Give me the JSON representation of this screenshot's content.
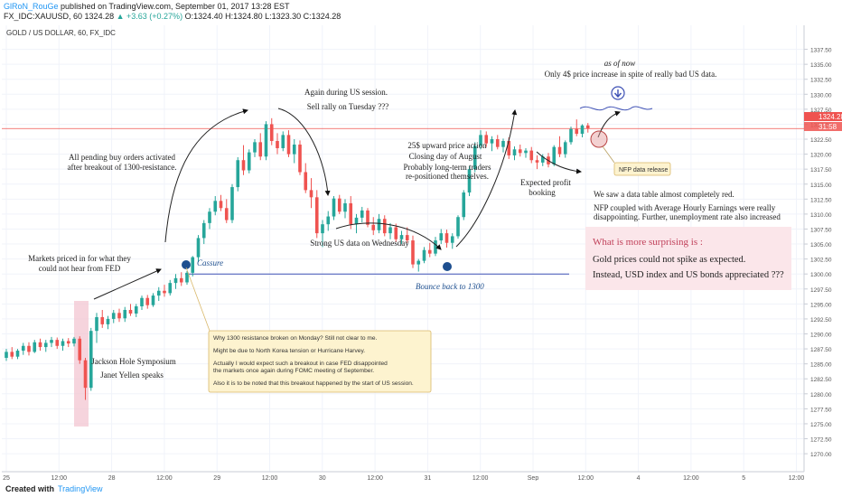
{
  "header": {
    "author": "GlRoN_RouGe",
    "published": "published on TradingView.com, September 01, 2017 13:28 EST",
    "symbol_line": "FX_IDC:XAUUSD, 60",
    "last": "1324.28",
    "change": "▲ +3.63 (+0.27%)",
    "ohlc": "O:1324.40 H:1324.80 L:1323.30 C:1324.28"
  },
  "footer": {
    "created_with": "Created with",
    "brand": "TradingView"
  },
  "colors": {
    "up": "#26a69a",
    "down": "#ef5350",
    "price_tag": "#ef5350",
    "support": "#3f51b5",
    "grid": "#f0f3fa"
  },
  "chart_data": {
    "type": "candlestick",
    "title": "GOLD / US DOLLAR, 60, FX_IDC",
    "ylim": [
      1267,
      1340
    ],
    "y_ticks": [
      "1337.50",
      "1335.00",
      "1332.50",
      "1330.00",
      "1327.50",
      "1325.00",
      "1322.50",
      "1320.00",
      "1317.50",
      "1315.00",
      "1312.50",
      "1310.00",
      "1307.50",
      "1305.00",
      "1302.50",
      "1300.00",
      "1297.50",
      "1295.00",
      "1292.50",
      "1290.00",
      "1287.50",
      "1285.00",
      "1282.50",
      "1280.00",
      "1277.50",
      "1275.00",
      "1272.50",
      "1270.00"
    ],
    "x_ticks": [
      "25",
      "12:00",
      "28",
      "12:00",
      "29",
      "12:00",
      "30",
      "12:00",
      "31",
      "12:00",
      "Sep",
      "12:00",
      "4",
      "12:00",
      "5",
      "12:00"
    ],
    "last_price": "1324.28",
    "countdown": "31:58",
    "support_level": 1300,
    "candles": [
      [
        1286,
        1287.5,
        1285.5,
        1287
      ],
      [
        1287,
        1287.8,
        1285.8,
        1286.2
      ],
      [
        1286.2,
        1287.5,
        1285.8,
        1287.2
      ],
      [
        1287.2,
        1288.5,
        1286.5,
        1288
      ],
      [
        1288,
        1288.6,
        1286.4,
        1287
      ],
      [
        1287,
        1289,
        1286.8,
        1288.6
      ],
      [
        1288.6,
        1289.2,
        1287.2,
        1287.8
      ],
      [
        1287.8,
        1289,
        1287,
        1288.5
      ],
      [
        1288.5,
        1289.5,
        1287.8,
        1289
      ],
      [
        1289,
        1289.4,
        1287.5,
        1288
      ],
      [
        1288,
        1289.2,
        1287.2,
        1288.8
      ],
      [
        1288.8,
        1289.3,
        1287.8,
        1288.4
      ],
      [
        1288.4,
        1289.5,
        1287.9,
        1289.2
      ],
      [
        1289.2,
        1289.6,
        1285,
        1285.6
      ],
      [
        1285.6,
        1286,
        1279,
        1281
      ],
      [
        1281,
        1291,
        1280.5,
        1290.5
      ],
      [
        1290.5,
        1293.5,
        1288.5,
        1292.8
      ],
      [
        1292.8,
        1294,
        1291,
        1291.6
      ],
      [
        1291.6,
        1293,
        1290.8,
        1292.5
      ],
      [
        1292.5,
        1294,
        1291.8,
        1293.5
      ],
      [
        1293.5,
        1294.2,
        1292,
        1292.6
      ],
      [
        1292.6,
        1294.5,
        1292,
        1294
      ],
      [
        1294,
        1295,
        1293,
        1293.4
      ],
      [
        1293.4,
        1295,
        1292.8,
        1294.6
      ],
      [
        1294.6,
        1296.4,
        1294,
        1296
      ],
      [
        1296,
        1296.5,
        1294.2,
        1294.8
      ],
      [
        1294.8,
        1296.8,
        1294.5,
        1296.4
      ],
      [
        1296.4,
        1297.8,
        1295.5,
        1297.2
      ],
      [
        1297.2,
        1298.2,
        1296.2,
        1296.8
      ],
      [
        1296.8,
        1299,
        1296.4,
        1298.5
      ],
      [
        1298.5,
        1300,
        1297.5,
        1299.3
      ],
      [
        1299.3,
        1300.3,
        1298,
        1298.6
      ],
      [
        1298.6,
        1300.5,
        1298.2,
        1300.2
      ],
      [
        1300.2,
        1303,
        1299.6,
        1302.8
      ],
      [
        1302.8,
        1306.5,
        1302,
        1306
      ],
      [
        1306,
        1309,
        1305,
        1308.5
      ],
      [
        1308.5,
        1311,
        1307.5,
        1310.4
      ],
      [
        1310.4,
        1313,
        1309.8,
        1312.2
      ],
      [
        1312.2,
        1313.2,
        1310.5,
        1311
      ],
      [
        1311,
        1312.5,
        1308.5,
        1309
      ],
      [
        1309,
        1315,
        1308.5,
        1314.5
      ],
      [
        1314.5,
        1319.5,
        1313.8,
        1319
      ],
      [
        1319,
        1321.5,
        1316.5,
        1317.3
      ],
      [
        1317.3,
        1320.8,
        1316.8,
        1320.3
      ],
      [
        1320.3,
        1322.5,
        1319.5,
        1322
      ],
      [
        1322,
        1323.5,
        1319,
        1319.6
      ],
      [
        1319.6,
        1325.5,
        1319,
        1325
      ],
      [
        1325,
        1326,
        1321.5,
        1322.2
      ],
      [
        1322.2,
        1323.5,
        1320,
        1321
      ],
      [
        1321,
        1323.8,
        1320.5,
        1323.2
      ],
      [
        1323.2,
        1324,
        1319.5,
        1320
      ],
      [
        1320,
        1322.5,
        1318.5,
        1321.6
      ],
      [
        1321.6,
        1322.3,
        1316.5,
        1317
      ],
      [
        1317,
        1318.5,
        1313.5,
        1314
      ],
      [
        1314,
        1316,
        1311,
        1312.8
      ],
      [
        1312.8,
        1314,
        1306,
        1306.8
      ],
      [
        1306.8,
        1309,
        1304.5,
        1308.3
      ],
      [
        1308.3,
        1310.5,
        1307.2,
        1309.6
      ],
      [
        1309.6,
        1313,
        1309,
        1312.6
      ],
      [
        1312.6,
        1313.2,
        1310,
        1310.4
      ],
      [
        1310.4,
        1312.5,
        1309.3,
        1311.8
      ],
      [
        1311.8,
        1313,
        1307.5,
        1308.3
      ],
      [
        1308.3,
        1310,
        1306.8,
        1309.4
      ],
      [
        1309.4,
        1311.2,
        1308.6,
        1310.6
      ],
      [
        1310.6,
        1311,
        1307.8,
        1308.2
      ],
      [
        1308.2,
        1309.5,
        1306.5,
        1307.3
      ],
      [
        1307.3,
        1310,
        1306.8,
        1309.2
      ],
      [
        1309.2,
        1309.8,
        1306.3,
        1306.8
      ],
      [
        1306.8,
        1308.5,
        1305.8,
        1307.8
      ],
      [
        1307.8,
        1308.4,
        1305.4,
        1305.8
      ],
      [
        1305.8,
        1307.2,
        1305,
        1306.5
      ],
      [
        1306.5,
        1307.8,
        1305.2,
        1305.6
      ],
      [
        1305.6,
        1306.4,
        1301,
        1301.6
      ],
      [
        1301.6,
        1302.5,
        1300.4,
        1302.2
      ],
      [
        1302.2,
        1304.5,
        1301.8,
        1304
      ],
      [
        1304,
        1305.2,
        1302.8,
        1303.4
      ],
      [
        1303.4,
        1306.2,
        1303,
        1305.6
      ],
      [
        1305.6,
        1307.5,
        1305,
        1306.8
      ],
      [
        1306.8,
        1307.4,
        1304.4,
        1305.2
      ],
      [
        1305.2,
        1306.8,
        1304.2,
        1306.3
      ],
      [
        1306.3,
        1309.8,
        1305.9,
        1309.5
      ],
      [
        1309.5,
        1314,
        1309,
        1313.6
      ],
      [
        1313.6,
        1318,
        1313,
        1317.5
      ],
      [
        1317.5,
        1322,
        1317,
        1321.4
      ],
      [
        1321.4,
        1324,
        1320.8,
        1323.2
      ],
      [
        1323.2,
        1323.8,
        1321.2,
        1321.8
      ],
      [
        1321.8,
        1323,
        1320.5,
        1322.5
      ],
      [
        1322.5,
        1323.2,
        1320.8,
        1321.2
      ],
      [
        1321.2,
        1322.6,
        1320.3,
        1322.2
      ],
      [
        1322.2,
        1322.8,
        1319.2,
        1319.8
      ],
      [
        1319.8,
        1321.3,
        1319,
        1320.8
      ],
      [
        1320.8,
        1321.6,
        1319.6,
        1320.2
      ],
      [
        1320.2,
        1321,
        1319.4,
        1320.6
      ],
      [
        1320.6,
        1321.2,
        1318.5,
        1319
      ],
      [
        1319,
        1319.8,
        1317.5,
        1318.6
      ],
      [
        1318.6,
        1320,
        1318,
        1319.6
      ],
      [
        1319.6,
        1320.2,
        1317.8,
        1318.3
      ],
      [
        1318.3,
        1321.5,
        1318,
        1321.2
      ],
      [
        1321.2,
        1323,
        1319.5,
        1320
      ],
      [
        1320,
        1322.3,
        1319.4,
        1322
      ],
      [
        1322,
        1324.6,
        1321.6,
        1324.2
      ],
      [
        1324.2,
        1325.8,
        1323,
        1323.4
      ],
      [
        1323.4,
        1325,
        1322.8,
        1324.8
      ],
      [
        1324.8,
        1325.2,
        1323.6,
        1324.28
      ]
    ]
  },
  "annotations": {
    "cassure": "Cassure",
    "bounce": "Bounce back to 1300",
    "markets_priced": [
      "Markets priced in for what they",
      "could not hear from FED"
    ],
    "pending_orders": [
      "All pending buy orders activated",
      "after breakout of 1300-resistance."
    ],
    "again_us": "Again during US session.",
    "sell_rally": "Sell rally on Tuesday ???",
    "strong_us": "Strong US data on Wednesday",
    "upward": [
      "25$ upward price action",
      "Closing day of August",
      "Probably long-term traders",
      "re-positioned themselves."
    ],
    "expected_profit": [
      "Expected profit",
      "booking"
    ],
    "as_of_now": "as of now",
    "only_4": "Only 4$ price increase in spite of really bad US data.",
    "nfp_release": "NFP data release",
    "data_table": "We saw a data table almost completely red.",
    "nfp_coupled": [
      "NFP coupled with Average Hourly Earnings were really",
      "disappointing. Further, unemployment rate also increased"
    ],
    "jackson": [
      "Jackson Hole Symposium",
      "Janet Yellen speaks"
    ],
    "surprise_title": "What is more surprising is :",
    "surprise_1": "Gold prices could not spike as expected.",
    "surprise_2": "Instead, USD index and US bonds appreciated ???",
    "note_lines": [
      "Why 1300 resistance broken on Monday? Still not clear to me.",
      "Might be due to North Korea tension or Hurricane Harvey.",
      "Actually I would expect such a breakout in case FED disappointed",
      "the markets once again during FOMC meeting of September.",
      "Also it is to be noted that this breakout happened by the start of US session."
    ]
  }
}
